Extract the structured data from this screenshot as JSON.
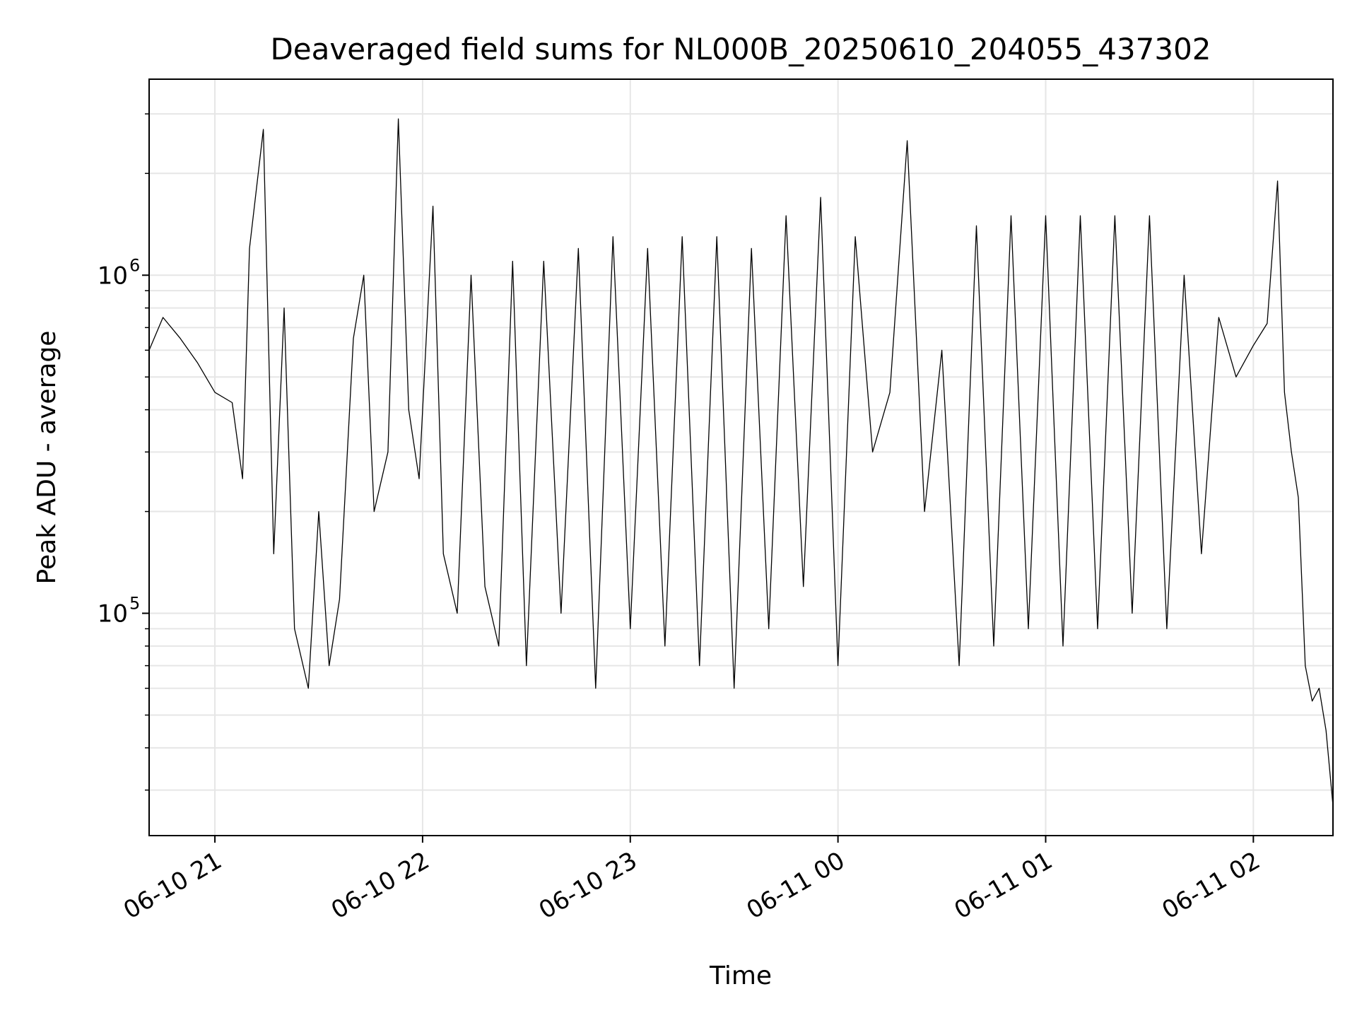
{
  "chart_data": {
    "type": "line",
    "title": "Deaveraged field sums for NL000B_20250610_204055_437302",
    "xlabel": "Time",
    "ylabel": "Peak ADU - average",
    "x_range": [
      "2025-06-10 20:41",
      "2025-06-11 02:23"
    ],
    "ylim": [
      22000,
      3800000
    ],
    "yscale": "log",
    "grid": true,
    "line_color": "#000000",
    "x_ticks": [
      {
        "value": "2025-06-10 21:00",
        "label": "06-10 21"
      },
      {
        "value": "2025-06-10 22:00",
        "label": "06-10 22"
      },
      {
        "value": "2025-06-10 23:00",
        "label": "06-10 23"
      },
      {
        "value": "2025-06-11 00:00",
        "label": "06-11 00"
      },
      {
        "value": "2025-06-11 01:00",
        "label": "06-11 01"
      },
      {
        "value": "2025-06-11 02:00",
        "label": "06-11 02"
      }
    ],
    "y_ticks": [
      {
        "value": 100000,
        "label": "10",
        "exp": "5"
      },
      {
        "value": 1000000,
        "label": "10",
        "exp": "6"
      }
    ],
    "series": [
      {
        "x": [
          "2025-06-10 20:41",
          "2025-06-10 20:45",
          "2025-06-10 20:50",
          "2025-06-10 20:55",
          "2025-06-10 21:00",
          "2025-06-10 21:05",
          "2025-06-10 21:08",
          "2025-06-10 21:10",
          "2025-06-10 21:14",
          "2025-06-10 21:17",
          "2025-06-10 21:20",
          "2025-06-10 21:23",
          "2025-06-10 21:27",
          "2025-06-10 21:30",
          "2025-06-10 21:33",
          "2025-06-10 21:36",
          "2025-06-10 21:40",
          "2025-06-10 21:43",
          "2025-06-10 21:46",
          "2025-06-10 21:50",
          "2025-06-10 21:53",
          "2025-06-10 21:56",
          "2025-06-10 21:59",
          "2025-06-10 22:03",
          "2025-06-10 22:06",
          "2025-06-10 22:10",
          "2025-06-10 22:14",
          "2025-06-10 22:18",
          "2025-06-10 22:22",
          "2025-06-10 22:26",
          "2025-06-10 22:30",
          "2025-06-10 22:35",
          "2025-06-10 22:40",
          "2025-06-10 22:45",
          "2025-06-10 22:50",
          "2025-06-10 22:55",
          "2025-06-10 23:00",
          "2025-06-10 23:05",
          "2025-06-10 23:10",
          "2025-06-10 23:15",
          "2025-06-10 23:20",
          "2025-06-10 23:25",
          "2025-06-10 23:30",
          "2025-06-10 23:35",
          "2025-06-10 23:40",
          "2025-06-10 23:45",
          "2025-06-10 23:50",
          "2025-06-10 23:55",
          "2025-06-11 00:00",
          "2025-06-11 00:05",
          "2025-06-11 00:10",
          "2025-06-11 00:15",
          "2025-06-11 00:20",
          "2025-06-11 00:25",
          "2025-06-11 00:30",
          "2025-06-11 00:35",
          "2025-06-11 00:40",
          "2025-06-11 00:45",
          "2025-06-11 00:50",
          "2025-06-11 00:55",
          "2025-06-11 01:00",
          "2025-06-11 01:05",
          "2025-06-11 01:10",
          "2025-06-11 01:15",
          "2025-06-11 01:20",
          "2025-06-11 01:25",
          "2025-06-11 01:30",
          "2025-06-11 01:35",
          "2025-06-11 01:40",
          "2025-06-11 01:45",
          "2025-06-11 01:50",
          "2025-06-11 01:55",
          "2025-06-11 02:00",
          "2025-06-11 02:04",
          "2025-06-11 02:07",
          "2025-06-11 02:09",
          "2025-06-11 02:11",
          "2025-06-11 02:13",
          "2025-06-11 02:15",
          "2025-06-11 02:17",
          "2025-06-11 02:19",
          "2025-06-11 02:21",
          "2025-06-11 02:23"
        ],
        "y": [
          600000,
          750000,
          650000,
          550000,
          450000,
          420000,
          250000,
          1200000,
          2700000,
          150000,
          800000,
          90000,
          60000,
          200000,
          70000,
          110000,
          650000,
          1000000,
          200000,
          300000,
          2900000,
          400000,
          250000,
          1600000,
          150000,
          100000,
          1000000,
          120000,
          80000,
          1100000,
          70000,
          1100000,
          100000,
          1200000,
          60000,
          1300000,
          90000,
          1200000,
          80000,
          1300000,
          70000,
          1300000,
          60000,
          1200000,
          90000,
          1500000,
          120000,
          1700000,
          70000,
          1300000,
          300000,
          450000,
          2500000,
          200000,
          600000,
          70000,
          1400000,
          80000,
          1500000,
          90000,
          1500000,
          80000,
          1500000,
          90000,
          1500000,
          100000,
          1500000,
          90000,
          1000000,
          150000,
          750000,
          500000,
          620000,
          720000,
          1900000,
          450000,
          300000,
          220000,
          70000,
          55000,
          60000,
          45000,
          27000
        ]
      }
    ]
  }
}
